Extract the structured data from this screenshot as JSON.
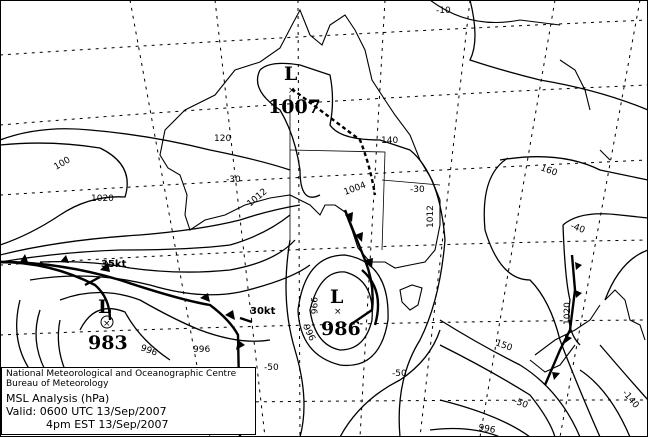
{
  "map": {
    "type": "MSL pressure analysis chart",
    "colors": {
      "lines": "#000000",
      "background": "#ffffff"
    },
    "lows": [
      {
        "symbol": "L",
        "pressure": "1007"
      },
      {
        "symbol": "L",
        "pressure": "983"
      },
      {
        "symbol": "L",
        "pressure": "986"
      }
    ],
    "wind_labels": [
      "35kt",
      "30kt"
    ],
    "isobar_labels": [
      "1020",
      "1012",
      "1004",
      "996",
      "996",
      "996",
      "1012",
      "1020",
      "996",
      "996"
    ],
    "grid_labels": [
      "100",
      "120",
      "140",
      "160",
      "150",
      "-10",
      "-30",
      "-30",
      "-40",
      "-50",
      "-50",
      "-50",
      "-140"
    ]
  },
  "legend": {
    "org": "National Meteorological and Oceanographic Centre",
    "bureau": "Bureau of Meteorology",
    "product": "MSL Analysis (hPa)",
    "valid_utc": "Valid: 0600 UTC 13/Sep/2007",
    "valid_local": "4pm EST 13/Sep/2007"
  }
}
